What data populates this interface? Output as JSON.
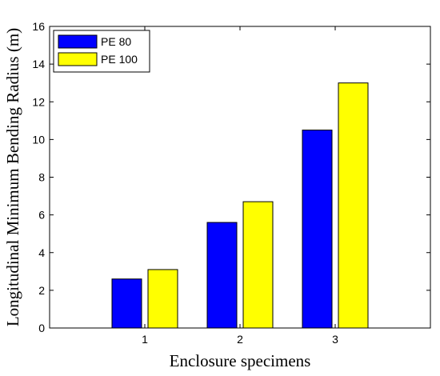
{
  "chart_data": {
    "type": "bar",
    "title": "",
    "xlabel": "Enclosure specimens",
    "ylabel": "Longitudinal Minimum Bending Radius (m)",
    "categories": [
      "1",
      "2",
      "3"
    ],
    "series": [
      {
        "name": "PE 80",
        "color": "#0000ff",
        "values": [
          2.6,
          5.6,
          10.5
        ]
      },
      {
        "name": "PE 100",
        "color": "#ffff00",
        "values": [
          3.1,
          6.7,
          13.0
        ]
      }
    ],
    "ylim": [
      0,
      16
    ],
    "yticks": [
      "0",
      "2",
      "4",
      "6",
      "8",
      "10",
      "12",
      "14",
      "16"
    ],
    "grid": false,
    "legend_position": "top-left"
  }
}
